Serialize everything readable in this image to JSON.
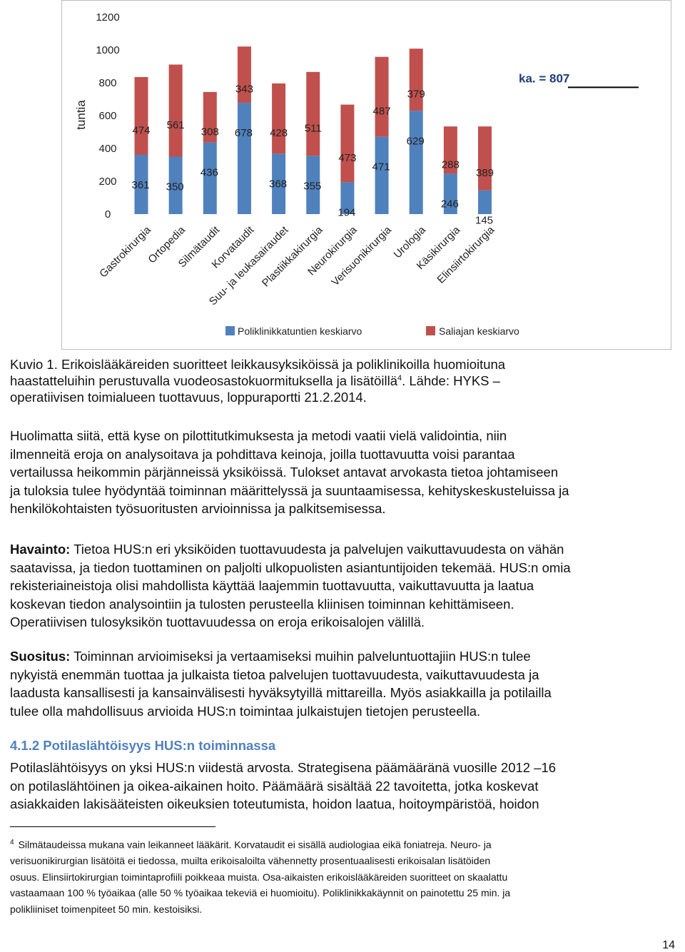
{
  "chart_data": {
    "type": "bar",
    "stacked": true,
    "ylabel": "tuntia",
    "yticks": [
      0,
      200,
      400,
      600,
      800,
      1000,
      1200
    ],
    "ylim": [
      0,
      1200
    ],
    "categories": [
      "Gastrokirurgia",
      "Ortopedia",
      "Silmätaudit",
      "Korvataudit",
      "Suu- ja leukasairaudet",
      "Plastiikkakirurgia",
      "Neurokirurgia",
      "Verisuonikirurgia",
      "Urologia",
      "Käsikirurgia",
      "Elinsiirtokirurgia"
    ],
    "series": [
      {
        "name": "Poliklinikkatuntien keskiarvo",
        "color": "#4f81bd",
        "values": [
          361,
          350,
          436,
          678,
          368,
          355,
          194,
          471,
          629,
          246,
          145
        ]
      },
      {
        "name": "Saliajan keskiarvo",
        "color": "#c0504d",
        "values": [
          474,
          561,
          308,
          343,
          428,
          511,
          473,
          487,
          379,
          288,
          389
        ]
      }
    ],
    "average_label": "ka. = 807",
    "average_value": 807,
    "legend_position": "bottom",
    "grid": false
  },
  "caption": {
    "line1": "Kuvio 1. Erikoislääkäreiden suoritteet leikkausyksiköissä ja poliklinikoilla huomioituna",
    "line2a": "haastatteluihin perustuvalla vuodeosastokuormituksella ja lisätöillä",
    "line2sup": "4",
    "line2b": ". Lähde: HYKS –",
    "line3": "operatiivisen toimialueen tuottavuus, loppuraportti 21.2.2014."
  },
  "para1": [
    "Huolimatta siitä, että kyse on pilottitutkimuksesta ja metodi vaatii vielä validointia, niin",
    "ilmenneitä eroja on analysoitava ja pohdittava keinoja, joilla tuottavuutta voisi parantaa",
    "vertailussa heikommin pärjänneissä yksiköissä. Tulokset antavat arvokasta tietoa johtamiseen",
    "ja tuloksia tulee hyödyntää toiminnan määrittelyssä ja suuntaamisessa, kehityskeskusteluissa ja",
    "henkilökohtaisten työsuoritusten arvioinnissa ja palkitsemisessa."
  ],
  "havainto": {
    "label": "Havainto:",
    "first": " Tietoa HUS:n eri yksiköiden tuottavuudesta ja palvelujen vaikuttavuudesta on vähän",
    "lines": [
      "saatavissa, ja tiedon tuottaminen on paljolti ulkopuolisten asiantuntijoiden tekemää. HUS:n omia",
      "rekisteriaineistoja olisi mahdollista käyttää laajemmin tuottavuutta, vaikuttavuutta ja laatua",
      "koskevan tiedon analysointiin ja tulosten perusteella kliinisen toiminnan kehittämiseen.",
      "Operatiivisen tulosyksikön tuottavuudessa on eroja erikoisalojen välillä."
    ]
  },
  "suositus": {
    "label": "Suositus:",
    "first": " Toiminnan arvioimiseksi ja vertaamiseksi muihin palveluntuottajiin HUS:n tulee",
    "lines": [
      "nykyistä enemmän tuottaa ja julkaista tietoa palvelujen tuottavuudesta, vaikuttavuudesta ja",
      "laadusta kansallisesti ja kansainvälisesti hyväksytyillä mittareilla. Myös asiakkailla ja potilailla",
      "tulee olla mahdollisuus arvioida HUS:n toimintaa julkaistujen tietojen perusteella."
    ]
  },
  "heading": "4.1.2 Potilaslähtöisyys HUS:n toiminnassa",
  "para2": [
    "Potilaslähtöisyys on yksi HUS:n viidestä arvosta. Strategisena päämääränä vuosille 2012 –16",
    "on potilaslähtöinen ja oikea-aikainen hoito. Päämäärä sisältää 22 tavoitetta, jotka koskevat",
    "asiakkaiden lakisääteisten oikeuksien toteutumista, hoidon laatua, hoitoympäristöä, hoidon"
  ],
  "footnote": {
    "num": "4",
    "lines": [
      "Silmätaudeissa mukana vain leikanneet lääkärit. Korvataudit ei sisällä audiologiaa eikä foniatreja. Neuro- ja",
      "verisuonikirurgian lisätöitä ei tiedossa, muilta erikoisaloilta vähennetty prosentuaalisesti erikoisalan lisätöiden",
      "osuus. Elinsiirtokirurgian toimintaprofiili poikkeaa muista. Osa-aikaisten erikoislääkäreiden suoritteet on skaalattu",
      "vastaamaan 100 % työaikaa (alle 50 % työaikaa tekeviä ei huomioitu). Poliklinikkakäynnit on painotettu 25 min. ja",
      "polikliiniset toimenpiteet 50 min. kestoisiksi."
    ]
  },
  "page_number": "14"
}
